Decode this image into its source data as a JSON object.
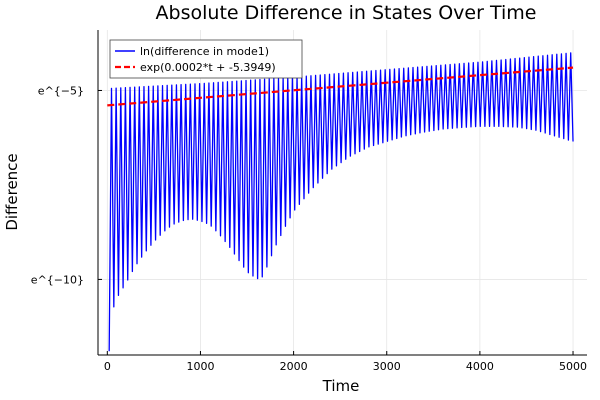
{
  "chart_data": {
    "type": "line",
    "title": "Absolute Difference in States Over Time",
    "xlabel": "Time",
    "ylabel": "Difference",
    "xlim": [
      -100,
      5150
    ],
    "ylim": [
      -12.0,
      -3.4
    ],
    "x_ticks": [
      0,
      1000,
      2000,
      3000,
      4000,
      5000
    ],
    "x_tick_labels": [
      "0",
      "1000",
      "2000",
      "3000",
      "4000",
      "5000"
    ],
    "y_ticks": [
      -10,
      -5
    ],
    "y_tick_labels": [
      "e^{−10}",
      "e^{−5}"
    ],
    "grid": true,
    "legend_position": "top-left",
    "series": [
      {
        "name": "ln(difference in mode1)",
        "color": "#0000ff",
        "style": "solid",
        "upper_envelope": {
          "x": [
            0,
            1000,
            2000,
            3000,
            4000,
            5000
          ],
          "y": [
            -4.95,
            -4.82,
            -4.65,
            -4.45,
            -4.25,
            -4.0
          ]
        },
        "lower_envelope": {
          "x": [
            20,
            40,
            60,
            100,
            150,
            200,
            300,
            400,
            500,
            600,
            700,
            800,
            900,
            1000,
            1100,
            1200,
            1300,
            1400,
            1500,
            1600,
            1650,
            1700,
            1800,
            1900,
            2000,
            2200,
            2400,
            2600,
            2800,
            3000,
            3200,
            3400,
            3600,
            3800,
            4000,
            4200,
            4400,
            4600,
            4800,
            5000
          ],
          "y": [
            -11.9,
            -11.5,
            -10.8,
            -10.5,
            -10.3,
            -10.1,
            -9.65,
            -9.3,
            -9.0,
            -8.75,
            -8.55,
            -8.45,
            -8.4,
            -8.45,
            -8.55,
            -8.8,
            -9.1,
            -9.45,
            -9.8,
            -9.97,
            -10.0,
            -9.75,
            -9.15,
            -8.65,
            -8.2,
            -7.6,
            -7.1,
            -6.75,
            -6.5,
            -6.35,
            -6.2,
            -6.1,
            -6.02,
            -5.98,
            -5.95,
            -5.95,
            -5.97,
            -6.05,
            -6.2,
            -6.35
          ]
        },
        "cycles": 100
      },
      {
        "name": "exp(0.0002*t + -5.3949)",
        "color": "#ff0000",
        "style": "dashed",
        "slope": 0.0002,
        "intercept": -5.3949,
        "x_range": [
          0,
          5000
        ]
      }
    ]
  }
}
